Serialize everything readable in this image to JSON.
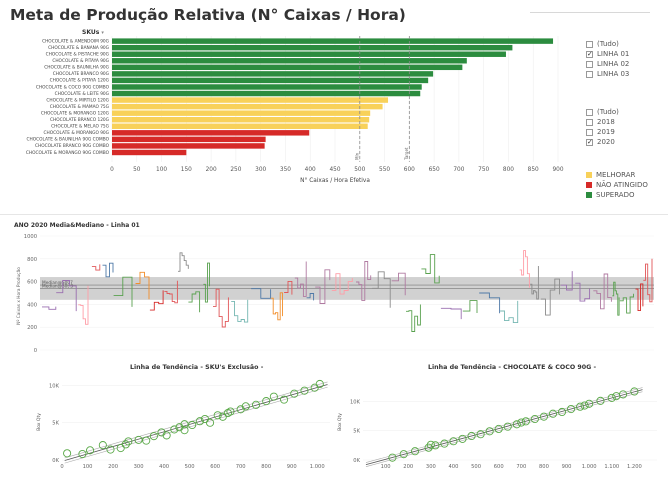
{
  "page": {
    "title": "Meta de Produção Relativa (N° Caixas / Hora)"
  },
  "bar_panel": {
    "sku_header": "SKUs",
    "x_axis_title": "N° Caixas / Hora Efetiva",
    "ref_line_labels": [
      "Mín",
      "Target"
    ]
  },
  "filters": {
    "line_filter": {
      "options": [
        {
          "label": "(Tudo)",
          "checked": false
        },
        {
          "label": "LINHA 01",
          "checked": true
        },
        {
          "label": "LINHA 02",
          "checked": false
        },
        {
          "label": "LINHA 03",
          "checked": false
        }
      ]
    },
    "year_filter": {
      "options": [
        {
          "label": "(Tudo)",
          "checked": false
        },
        {
          "label": "2018",
          "checked": false
        },
        {
          "label": "2019",
          "checked": false
        },
        {
          "label": "2020",
          "checked": true
        }
      ]
    }
  },
  "legend": {
    "items": [
      {
        "label": "MELHORAR",
        "color": "#f8d15a"
      },
      {
        "label": "NÃO ATINGIDO",
        "color": "#d62a28"
      },
      {
        "label": "SUPERADO",
        "color": "#2c8c3f"
      }
    ]
  },
  "colors": {
    "superado": "#2c8c3f",
    "melhorar": "#f8d15a",
    "nao_atingido": "#d62a28",
    "band": "#c9c9c9",
    "scatter": "#58a846"
  },
  "middle_panel": {
    "title": "ANO 2020 Media&Mediano - Linha 01",
    "y_axis_title": "Nº Caixas x Hora Produção",
    "ref_labels": [
      "Median@S007",
      "Median@S0t 3"
    ],
    "y_ticks": [
      "1000",
      "800",
      "600",
      "400",
      "200",
      "0"
    ]
  },
  "trend_left": {
    "title": "Linha de Tendência - SKU's Exclusão -",
    "y_axis_title": "Box Qty",
    "y_ticks": [
      "10K",
      "5K",
      "0K"
    ],
    "x_ticks": [
      "0",
      "100",
      "200",
      "300",
      "400",
      "500",
      "600",
      "700",
      "800",
      "900",
      "1.000"
    ]
  },
  "trend_right": {
    "title": "Linha de Tendência - CHOCOLATE & COCO 90G -",
    "y_axis_title": "Box Qty",
    "y_ticks": [
      "10K",
      "5K",
      "0K"
    ],
    "x_ticks": [
      "100",
      "200",
      "300",
      "400",
      "500",
      "600",
      "700",
      "800",
      "900",
      "1.000",
      "1.100",
      "1.200"
    ]
  },
  "chart_data": [
    {
      "type": "bar",
      "orientation": "horizontal",
      "title": "Meta de Produção Relativa (N° Caixas / Hora)",
      "xlabel": "N° Caixas / Hora Efetiva",
      "ylabel": "SKUs",
      "xlim": [
        0,
        900
      ],
      "x_ticks": [
        0,
        50,
        100,
        150,
        200,
        250,
        300,
        350,
        400,
        450,
        500,
        550,
        600,
        650,
        700,
        750,
        800,
        850,
        900
      ],
      "reference_lines": [
        {
          "label": "Mín",
          "value": 500
        },
        {
          "label": "Target",
          "value": 600
        }
      ],
      "categories": [
        "CHOCOLATE & AMENDOIM 90G",
        "CHOCOLATE & BANANA 90G",
        "CHOCOLATE & PISTACHE 90G",
        "CHOCOLATE & PITAYA 90G",
        "CHOCOLATE & BAUNILHA 90G",
        "CHOCOLATE BRANCO 90G",
        "CHOCOLATE & PITAYA 120G",
        "CHOCOLATE & COCO 90G COMBO",
        "CHOCOLATE & LEITE 90G",
        "CHOCOLATE & MIRTILO 120G",
        "CHOCOLATE & MAMAO 75G",
        "CHOCOLATE & MORANGO 120G",
        "CHOCOLATE BRANCO 120G",
        "CHOCOLATE & MELAO 75G",
        "CHOCOLATE & MORANGO 90G",
        "CHOCOLATE & BAUNILHA 90G COMBO",
        "CHOCOLATE BRANCO 90G COMBO",
        "CHOCOLATE & MORANGO 90G COMBO"
      ],
      "values": [
        890,
        808,
        795,
        716,
        707,
        648,
        638,
        625,
        622,
        557,
        546,
        521,
        519,
        516,
        398,
        310,
        308,
        150
      ],
      "status": [
        "SUPERADO",
        "SUPERADO",
        "SUPERADO",
        "SUPERADO",
        "SUPERADO",
        "SUPERADO",
        "SUPERADO",
        "SUPERADO",
        "SUPERADO",
        "MELHORAR",
        "MELHORAR",
        "MELHORAR",
        "MELHORAR",
        "MELHORAR",
        "NÃO ATINGIDO",
        "NÃO ATINGIDO",
        "NÃO ATINGIDO",
        "NÃO ATINGIDO"
      ]
    },
    {
      "type": "line",
      "title": "ANO 2020 Media&Mediano - Linha 01",
      "ylabel": "Nº Caixas x Hora Produção",
      "ylim": [
        0,
        1000
      ],
      "reference_band": [
        440,
        640
      ],
      "reference_lines": [
        {
          "label": "Median@S007",
          "value": 570
        },
        {
          "label": "Median@S0t 3",
          "value": 540
        }
      ]
    },
    {
      "type": "scatter",
      "title": "Linha de Tendência - SKU's Exclusão -",
      "ylabel": "Box Qty",
      "xlim": [
        0,
        1050
      ],
      "ylim": [
        0,
        11000
      ],
      "trend": true,
      "points": [
        [
          20,
          900
        ],
        [
          80,
          800
        ],
        [
          110,
          1300
        ],
        [
          160,
          2000
        ],
        [
          190,
          1400
        ],
        [
          230,
          1600
        ],
        [
          260,
          2500
        ],
        [
          300,
          2700
        ],
        [
          330,
          2600
        ],
        [
          360,
          3200
        ],
        [
          390,
          3700
        ],
        [
          410,
          3300
        ],
        [
          440,
          4100
        ],
        [
          460,
          4400
        ],
        [
          480,
          4000
        ],
        [
          510,
          4700
        ],
        [
          540,
          5200
        ],
        [
          560,
          5500
        ],
        [
          580,
          5000
        ],
        [
          610,
          6000
        ],
        [
          630,
          5800
        ],
        [
          660,
          6500
        ],
        [
          700,
          6800
        ],
        [
          720,
          7200
        ],
        [
          760,
          7400
        ],
        [
          800,
          7900
        ],
        [
          830,
          8500
        ],
        [
          870,
          8100
        ],
        [
          910,
          8900
        ],
        [
          950,
          9300
        ],
        [
          990,
          9700
        ],
        [
          1010,
          10200
        ],
        [
          250,
          2100
        ],
        [
          480,
          4800
        ],
        [
          650,
          6300
        ]
      ]
    },
    {
      "type": "scatter",
      "title": "Linha de Tendência - CHOCOLATE & COCO 90G -",
      "ylabel": "Box Qty",
      "xlim": [
        0,
        1300
      ],
      "ylim": [
        0,
        14000
      ],
      "trend": true,
      "points": [
        [
          130,
          400
        ],
        [
          180,
          1000
        ],
        [
          230,
          1500
        ],
        [
          290,
          2100
        ],
        [
          320,
          2500
        ],
        [
          360,
          2800
        ],
        [
          400,
          3200
        ],
        [
          440,
          3600
        ],
        [
          480,
          4100
        ],
        [
          520,
          4400
        ],
        [
          560,
          4900
        ],
        [
          600,
          5300
        ],
        [
          640,
          5700
        ],
        [
          680,
          6100
        ],
        [
          720,
          6600
        ],
        [
          760,
          7000
        ],
        [
          800,
          7400
        ],
        [
          840,
          7900
        ],
        [
          880,
          8200
        ],
        [
          920,
          8700
        ],
        [
          960,
          9100
        ],
        [
          1000,
          9600
        ],
        [
          1050,
          10100
        ],
        [
          1100,
          10600
        ],
        [
          1150,
          11200
        ],
        [
          1200,
          11700
        ],
        [
          300,
          2600
        ],
        [
          700,
          6400
        ],
        [
          980,
          9300
        ],
        [
          1120,
          10900
        ]
      ]
    }
  ]
}
